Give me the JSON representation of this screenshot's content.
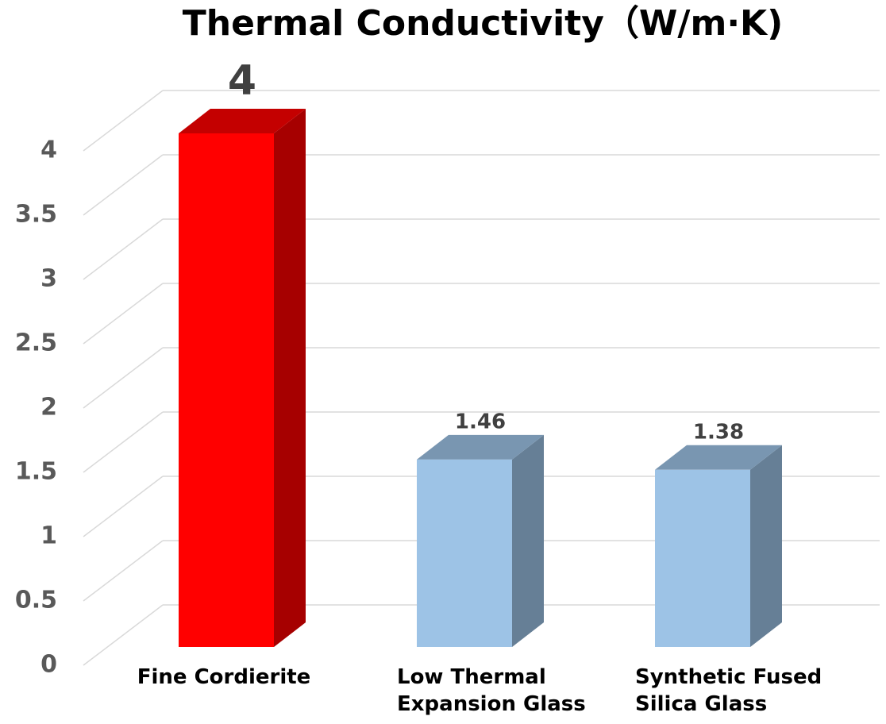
{
  "chart_data": {
    "type": "bar3d",
    "title": "Thermal Conductivity（W/m·K)",
    "categories": [
      "Fine Cordierite",
      "Low Thermal Expansion Glass",
      "Synthetic Fused Silica Glass"
    ],
    "values": [
      4,
      1.46,
      1.38
    ],
    "colors": [
      "#ff0000",
      "#9dc3e6",
      "#9dc3e6"
    ],
    "ylim": [
      0,
      4
    ],
    "yticks": [
      0,
      0.5,
      1,
      1.5,
      2,
      2.5,
      3,
      3.5,
      4
    ],
    "grid": true
  }
}
